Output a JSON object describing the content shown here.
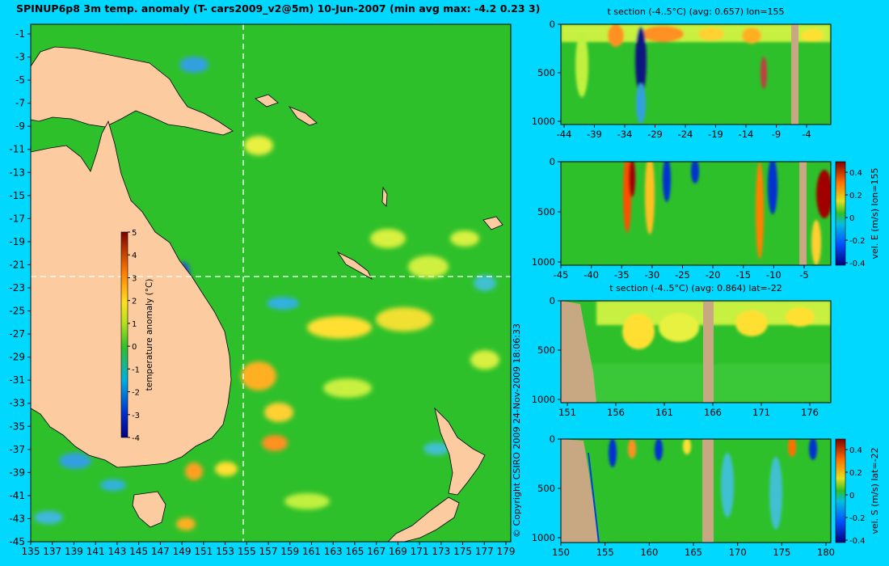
{
  "title": "SPINUP6p8 3m temp. anomaly (T- cars2009_v2@5m) 10-Jun-2007 (min avg max: -4.2 0.23 3)",
  "copyright": "© Copyright CSIRO 2009   24-Nov-2009 18:06:33",
  "colors": {
    "background": "#00d8ff",
    "ocean": "#2ec02a",
    "land_map": "#fccca0",
    "land_section": "#c8a882"
  },
  "chart_data": [
    {
      "id": "map",
      "type": "heatmap",
      "title": "SPINUP6p8 3m temp. anomaly (T- cars2009_v2@5m) 10-Jun-2007 (min avg max: -4.2 0.23 3)",
      "x_ticks": [
        "135",
        "137",
        "139",
        "141",
        "143",
        "145",
        "147",
        "149",
        "151",
        "153",
        "155",
        "157",
        "159",
        "161",
        "163",
        "165",
        "167",
        "169",
        "171",
        "173",
        "175",
        "177",
        "179"
      ],
      "y_ticks": [
        "-1",
        "-3",
        "-5",
        "-7",
        "-9",
        "-11",
        "-13",
        "-15",
        "-17",
        "-19",
        "-21",
        "-23",
        "-25",
        "-27",
        "-29",
        "-31",
        "-33",
        "-35",
        "-37",
        "-39",
        "-41",
        "-43",
        "-45"
      ],
      "xlim": [
        135,
        180
      ],
      "ylim": [
        -45,
        0
      ],
      "section_lines": {
        "lon": 155,
        "lat": -22
      },
      "colorbar": {
        "label": "temperature anomaly (°C)",
        "ticks": [
          "5",
          "4",
          "3",
          "2",
          "1",
          "0",
          "-1",
          "-2",
          "-3",
          "-4"
        ],
        "range": [
          -4,
          5
        ]
      }
    },
    {
      "id": "t-section-lon",
      "type": "heatmap",
      "title": "t section (-4..5°C) (avg: 0.657) lon=155",
      "x_ticks": [
        "-44",
        "-39",
        "-34",
        "-29",
        "-24",
        "-19",
        "-14",
        "-9",
        "-4"
      ],
      "y_ticks": [
        "0",
        "500",
        "1000"
      ]
    },
    {
      "id": "vel-e-section",
      "type": "heatmap",
      "x_ticks": [
        "-45",
        "-40",
        "-35",
        "-30",
        "-25",
        "-20",
        "-15",
        "-10",
        "-5"
      ],
      "y_ticks": [
        "0",
        "500",
        "1000"
      ],
      "colorbar": {
        "label": "vel. E (m/s) lon=155",
        "ticks": [
          "0.4",
          "0.2",
          "0",
          "-0.2",
          "-0.4"
        ],
        "range": [
          -0.4,
          0.4
        ]
      }
    },
    {
      "id": "t-section-lat",
      "type": "heatmap",
      "title": "t section (-4..5°C) (avg: 0.864) lat=-22",
      "x_ticks": [
        "151",
        "156",
        "161",
        "166",
        "171",
        "176"
      ],
      "y_ticks": [
        "0",
        "500",
        "1000"
      ]
    },
    {
      "id": "vel-s-section",
      "type": "heatmap",
      "x_ticks": [
        "150",
        "155",
        "160",
        "165",
        "170",
        "175",
        "180"
      ],
      "y_ticks": [
        "0",
        "500",
        "1000"
      ],
      "colorbar": {
        "label": "vel. S (m/s) lat=-22",
        "ticks": [
          "0.4",
          "0.2",
          "0",
          "-0.2",
          "-0.4"
        ],
        "range": [
          -0.4,
          0.4
        ]
      }
    }
  ]
}
